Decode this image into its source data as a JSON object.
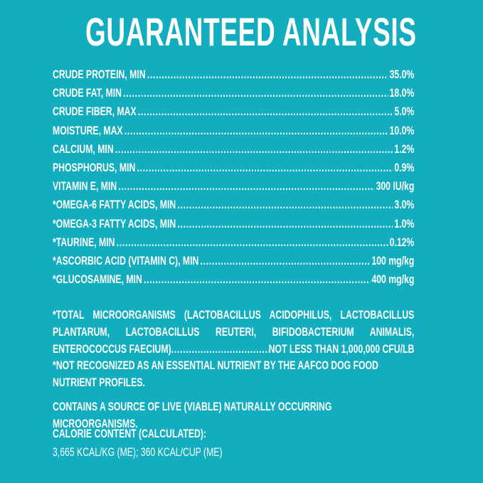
{
  "title": "GUARANTEED ANALYSIS",
  "background_color": "#12adbf",
  "rows": [
    {
      "label": "CRUDE PROTEIN, MIN",
      "value": "35.0%"
    },
    {
      "label": "CRUDE FAT, MIN",
      "value": "18.0%"
    },
    {
      "label": "CRUDE FIBER, MAX",
      "value": "5.0%"
    },
    {
      "label": "MOISTURE, MAX",
      "value": "10.0%"
    },
    {
      "label": "CALCIUM, MIN",
      "value": "1.2%"
    },
    {
      "label": "PHOSPHORUS, MIN",
      "value": "0.9%"
    },
    {
      "label": "VITAMIN E, MIN",
      "value": "300 IU/kg"
    },
    {
      "label": "*OMEGA-6 FATTY ACIDS, MIN",
      "value": "3.0%"
    },
    {
      "label": "*OMEGA-3 FATTY ACIDS, MIN",
      "value": "1.0%"
    },
    {
      "label": "*TAURINE, MIN",
      "value": "0.12%"
    },
    {
      "label": "*ASCORBIC ACID (VITAMIN C), MIN",
      "value": "100 mg/kg"
    },
    {
      "label": "*GLUCOSAMINE, MIN",
      "value": "400 mg/kg"
    }
  ],
  "microorganisms": {
    "text": "*TOTAL MICROORGANISMS (LACTOBACILLUS ACIDOPHILUS, LACTOBACILLUS PLANTARUM, LACTOBACILLUS REUTERI, BIFIDOBACTERIUM ANIMALIS,",
    "last_label": "ENTEROCOCCUS FAECIUM)",
    "value": "NOT LESS THAN 1,000,000 CFU/LB"
  },
  "note": "*NOT RECOGNIZED AS AN ESSENTIAL NUTRIENT BY THE AAFCO DOG FOOD NUTRIENT PROFILES.",
  "contains": "CONTAINS A SOURCE OF LIVE (VIABLE) NATURALLY OCCURRING MICROORGANISMS.",
  "calorie": {
    "heading": "CALORIE CONTENT (CALCULATED):",
    "value": "3,665 KCAL/KG (ME); 360 KCAL/CUP (ME)"
  }
}
